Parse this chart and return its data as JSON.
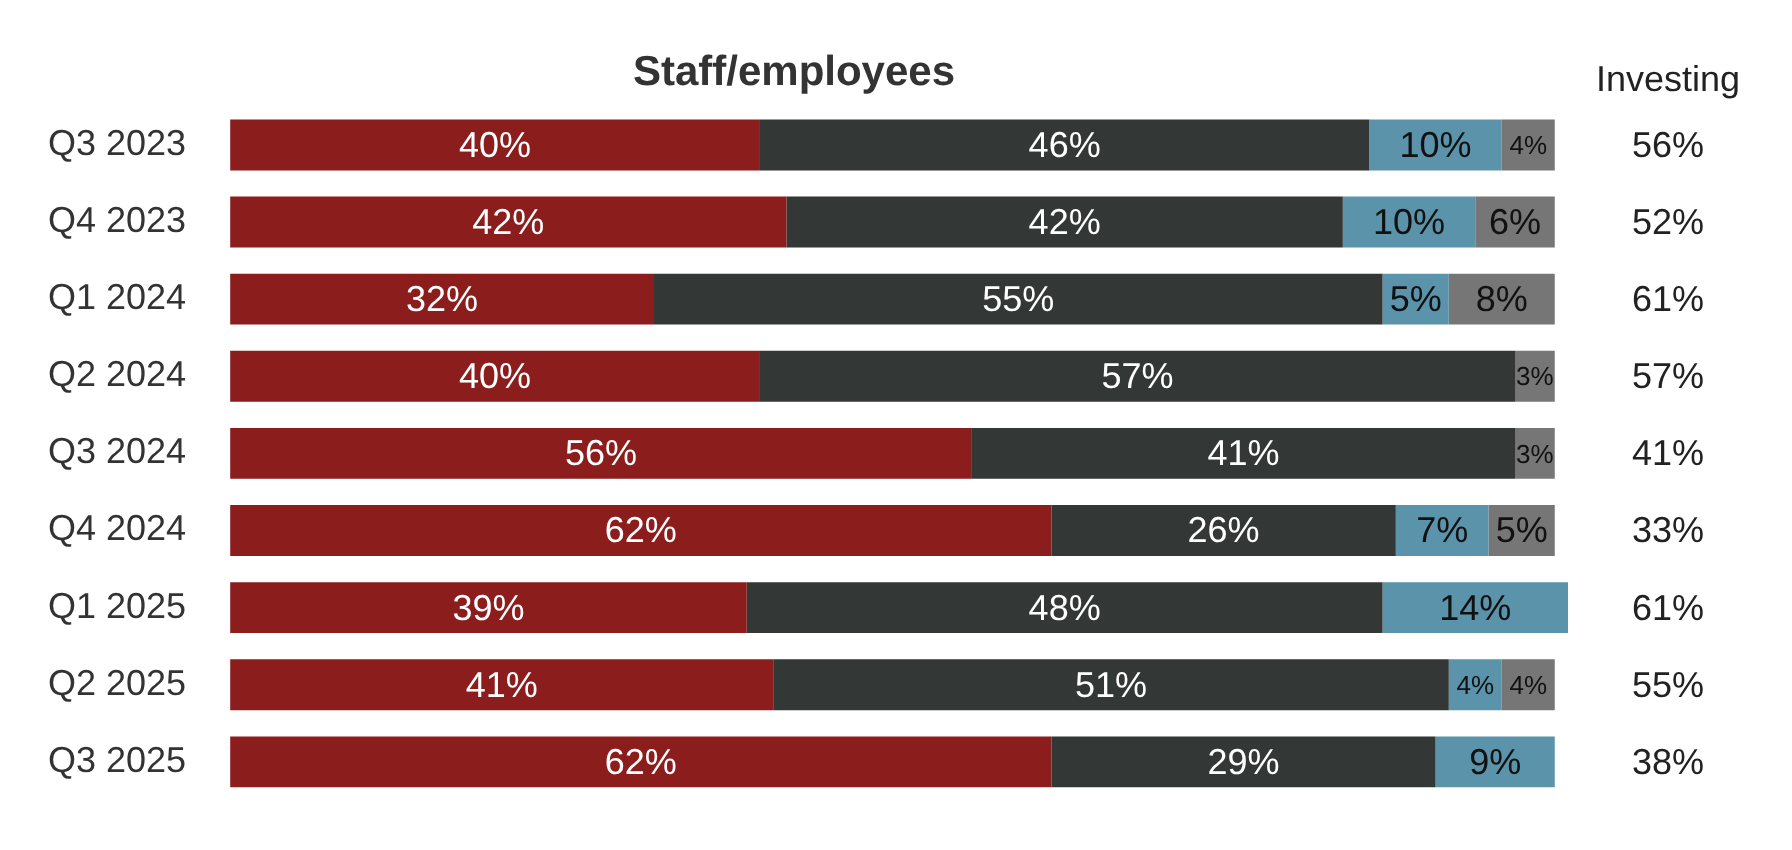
{
  "chart_data": {
    "type": "bar",
    "orientation": "horizontal",
    "stacked": true,
    "title": "Staff/employees",
    "categories": [
      "Q3 2023",
      "Q4 2023",
      "Q1 2024",
      "Q2 2024",
      "Q3 2024",
      "Q4 2024",
      "Q1 2025",
      "Q2 2025",
      "Q3 2025"
    ],
    "series": [
      {
        "color": "#8b1d1d",
        "values": [
          40,
          42,
          32,
          40,
          56,
          62,
          39,
          41,
          62
        ],
        "value_labels": [
          "40%",
          "42%",
          "32%",
          "40%",
          "56%",
          "62%",
          "39%",
          "41%",
          "62%"
        ]
      },
      {
        "color": "#333735",
        "values": [
          46,
          42,
          55,
          57,
          41,
          26,
          48,
          51,
          29
        ],
        "value_labels": [
          "46%",
          "42%",
          "55%",
          "57%",
          "41%",
          "26%",
          "48%",
          "51%",
          "29%"
        ]
      },
      {
        "color": "#5a93aa",
        "values": [
          10,
          10,
          5,
          null,
          null,
          7,
          14,
          4,
          9
        ],
        "value_labels": [
          "10%",
          "10%",
          "5%",
          null,
          null,
          "7%",
          "14%",
          "4%",
          "9%"
        ]
      },
      {
        "color": "#767676",
        "values": [
          4,
          6,
          8,
          3,
          3,
          5,
          null,
          4,
          null
        ],
        "value_labels": [
          "4%",
          "6%",
          "8%",
          "3%",
          "3%",
          "5%",
          null,
          "4%",
          null
        ]
      }
    ],
    "grid": false,
    "legend": false,
    "tick_labels": "y",
    "annotations": [
      "Investing",
      "56%",
      "52%",
      "61%",
      "57%",
      "41%",
      "33%",
      "61%",
      "55%",
      "38%"
    ]
  }
}
